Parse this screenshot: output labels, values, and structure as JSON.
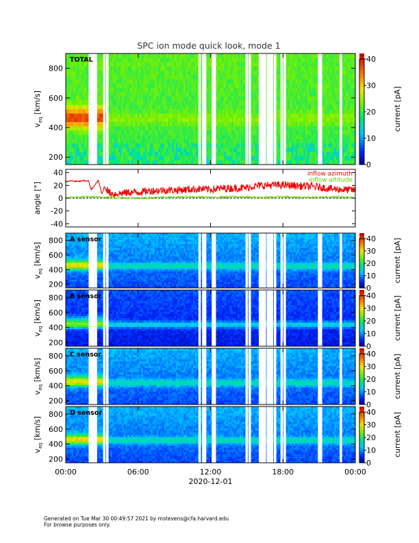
{
  "chart_data": {
    "title": "SPC ion mode quick look, mode 1",
    "type": "heatmap",
    "x_axis": {
      "label": "2020-12-01",
      "ticks": [
        "00:00",
        "06:00",
        "12:00",
        "18:00",
        "00:00"
      ],
      "range_hours": [
        0,
        24
      ]
    },
    "spectrogram_y": {
      "label_main": "v",
      "label_sub": "eq",
      "label_unit": "[km/s]",
      "ticks": [
        200,
        400,
        600,
        800
      ],
      "range": [
        150,
        900
      ]
    },
    "colorbar": {
      "label": "current [pA]",
      "ticks": [
        0,
        10,
        20,
        30,
        40
      ],
      "range": [
        0,
        40
      ]
    },
    "data_gaps_hours": [
      2.0,
      2.15,
      2.3,
      2.5,
      3.2,
      3.45,
      11.1,
      11.4,
      11.55,
      12.2,
      12.35,
      15.0,
      15.25,
      16.1,
      16.3,
      16.5,
      16.75,
      16.95,
      17.1,
      17.35,
      17.9,
      18.15,
      21.0,
      21.15,
      22.8
    ],
    "panels": [
      {
        "name": "TOTAL",
        "palette": "green",
        "solar_wind_vbulk_kms": 460
      },
      {
        "name": "A sensor",
        "palette": "blue",
        "solar_wind_vbulk_kms": 450
      },
      {
        "name": "B sensor",
        "palette": "dark",
        "solar_wind_vbulk_kms": 440
      },
      {
        "name": "C sensor",
        "palette": "blue",
        "solar_wind_vbulk_kms": 440
      },
      {
        "name": "D sensor",
        "palette": "blue",
        "solar_wind_vbulk_kms": 450
      }
    ],
    "angle_panel": {
      "ylabel": "angle [°]",
      "ticks": [
        40,
        20,
        0,
        -20,
        -40
      ],
      "range": [
        -45,
        45
      ],
      "series": [
        {
          "name": "inflow azimuth",
          "color": "#ee0000",
          "x_hours": [
            0,
            0.5,
            1.0,
            1.5,
            1.9,
            2.1,
            2.4,
            2.7,
            3.0,
            3.2,
            3.6,
            4,
            5,
            6,
            7,
            8,
            9,
            10,
            11,
            12,
            13,
            14,
            15,
            15.5,
            16,
            17,
            18,
            19,
            20,
            21,
            22,
            23,
            24
          ],
          "values": [
            26,
            27,
            26,
            27,
            27,
            13,
            20,
            28,
            6,
            18,
            6,
            4,
            6,
            7,
            9,
            10,
            10,
            11,
            12,
            11,
            13,
            13,
            14,
            16,
            17,
            18,
            18,
            17,
            16,
            15,
            12,
            11,
            10
          ]
        },
        {
          "name": "inflow altitude",
          "color": "#66cc00",
          "x_hours": [
            0,
            2,
            4,
            6,
            8,
            10,
            12,
            14,
            16,
            18,
            20,
            22,
            24
          ],
          "values": [
            1,
            2,
            1,
            0,
            1,
            2,
            1,
            2,
            1,
            2,
            1,
            2,
            1
          ]
        }
      ]
    }
  },
  "footer": {
    "line1": "Generated on Tue Mar 30 00:49:57 2021 by mstevens@cfa.harvard.edu",
    "line2": "For browse purposes only."
  }
}
